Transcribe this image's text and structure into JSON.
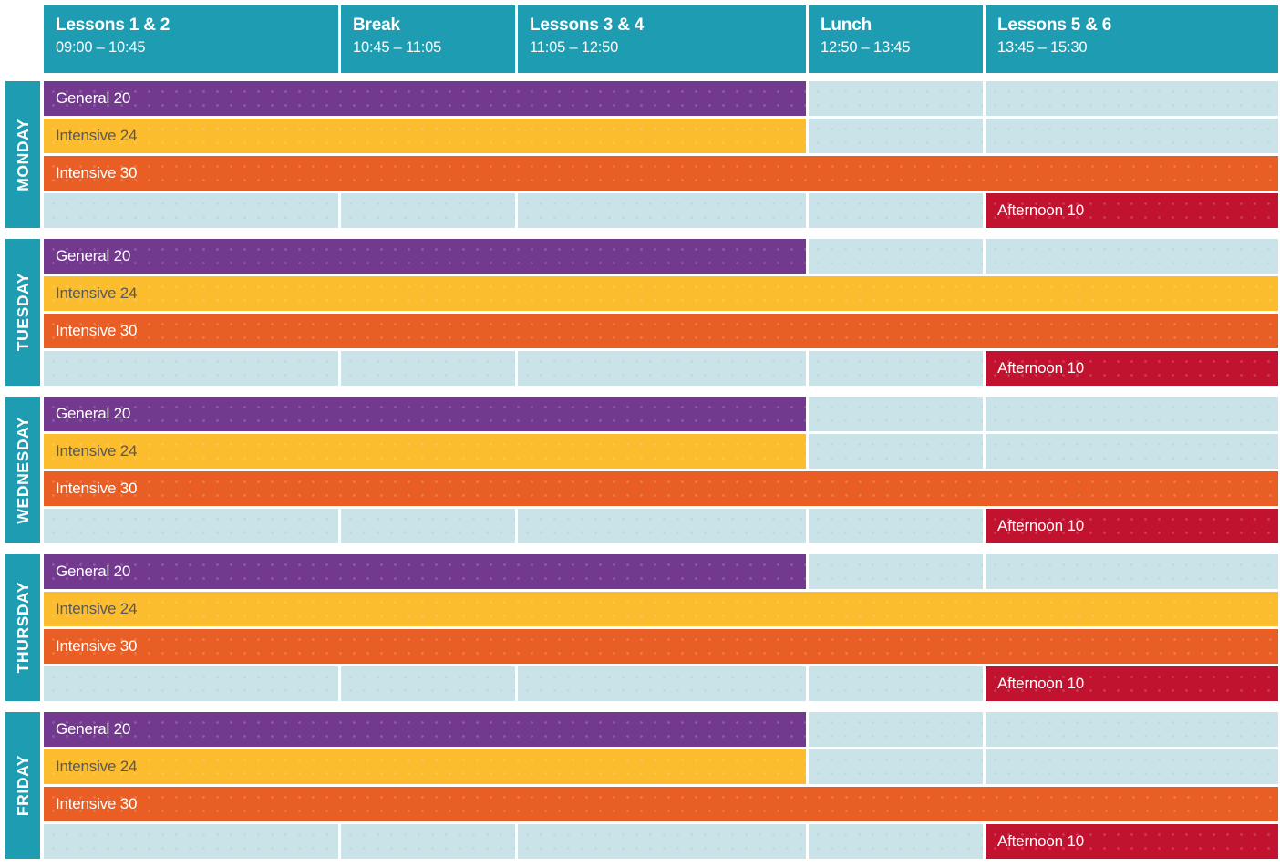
{
  "columns": [
    {
      "title": "Lessons 1 & 2",
      "time": "09:00 – 10:45"
    },
    {
      "title": "Break",
      "time": "10:45 – 11:05"
    },
    {
      "title": "Lessons 3 & 4",
      "time": "11:05 – 12:50"
    },
    {
      "title": "Lunch",
      "time": "12:50 – 13:45"
    },
    {
      "title": "Lessons 5 & 6",
      "time": "13:45 – 15:30"
    }
  ],
  "days": [
    {
      "label": "MONDAY",
      "rows": [
        {
          "course": "General 20",
          "color": "purple",
          "text": "white",
          "start": 1,
          "end": 3
        },
        {
          "course": "Intensive 24",
          "color": "yellow",
          "text": "dark",
          "start": 1,
          "end": 3
        },
        {
          "course": "Intensive 30",
          "color": "orange",
          "text": "white",
          "start": 1,
          "end": 5
        },
        {
          "course": "Afternoon 10",
          "color": "red",
          "text": "white",
          "start": 5,
          "end": 5
        }
      ]
    },
    {
      "label": "TUESDAY",
      "rows": [
        {
          "course": "General 20",
          "color": "purple",
          "text": "white",
          "start": 1,
          "end": 3
        },
        {
          "course": "Intensive 24",
          "color": "yellow",
          "text": "dark",
          "start": 1,
          "end": 5
        },
        {
          "course": "Intensive 30",
          "color": "orange",
          "text": "white",
          "start": 1,
          "end": 5
        },
        {
          "course": "Afternoon 10",
          "color": "red",
          "text": "white",
          "start": 5,
          "end": 5
        }
      ]
    },
    {
      "label": "WEDNESDAY",
      "rows": [
        {
          "course": "General 20",
          "color": "purple",
          "text": "white",
          "start": 1,
          "end": 3
        },
        {
          "course": "Intensive 24",
          "color": "yellow",
          "text": "dark",
          "start": 1,
          "end": 3
        },
        {
          "course": "Intensive 30",
          "color": "orange",
          "text": "white",
          "start": 1,
          "end": 5
        },
        {
          "course": "Afternoon 10",
          "color": "red",
          "text": "white",
          "start": 5,
          "end": 5
        }
      ]
    },
    {
      "label": "THURSDAY",
      "rows": [
        {
          "course": "General 20",
          "color": "purple",
          "text": "white",
          "start": 1,
          "end": 3
        },
        {
          "course": "Intensive 24",
          "color": "yellow",
          "text": "dark",
          "start": 1,
          "end": 5
        },
        {
          "course": "Intensive 30",
          "color": "orange",
          "text": "white",
          "start": 1,
          "end": 5
        },
        {
          "course": "Afternoon 10",
          "color": "red",
          "text": "white",
          "start": 5,
          "end": 5
        }
      ]
    },
    {
      "label": "FRIDAY",
      "rows": [
        {
          "course": "General 20",
          "color": "purple",
          "text": "white",
          "start": 1,
          "end": 3
        },
        {
          "course": "Intensive 24",
          "color": "yellow",
          "text": "dark",
          "start": 1,
          "end": 3
        },
        {
          "course": "Intensive 30",
          "color": "orange",
          "text": "white",
          "start": 1,
          "end": 5
        },
        {
          "course": "Afternoon 10",
          "color": "red",
          "text": "white",
          "start": 5,
          "end": 5
        }
      ]
    }
  ],
  "colors": {
    "teal": "#1E9DB2",
    "purple": "#73398F",
    "yellow": "#FBBC2D",
    "orange": "#E95E24",
    "red": "#C1122F",
    "cell": "#C9E3E9",
    "dark_text": "#58595B"
  }
}
